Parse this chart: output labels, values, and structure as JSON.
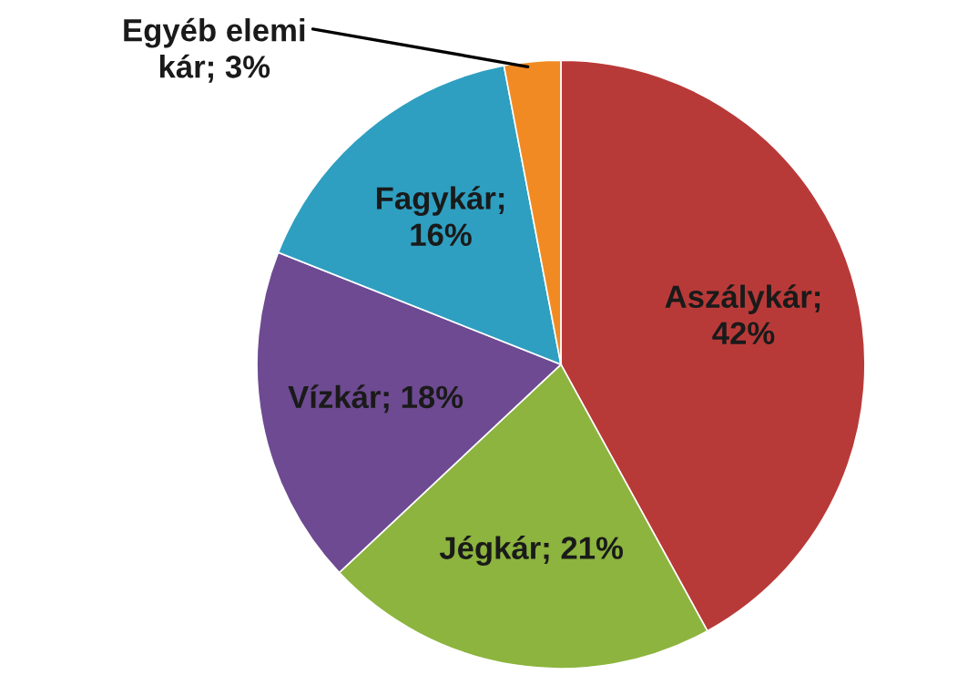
{
  "chart_data": {
    "type": "pie",
    "categories": [
      "Aszálykár",
      "Jégkár",
      "Vízkár",
      "Fagykár",
      "Egyéb elemi kár"
    ],
    "values": [
      42,
      21,
      18,
      16,
      3
    ],
    "colors": [
      "#b83a38",
      "#8cb43e",
      "#6e4a92",
      "#2e9fc0",
      "#f18a22"
    ],
    "value_labels": [
      "; 42%",
      "; 21%",
      "; 18%",
      "; 16%",
      "; 3%"
    ]
  }
}
